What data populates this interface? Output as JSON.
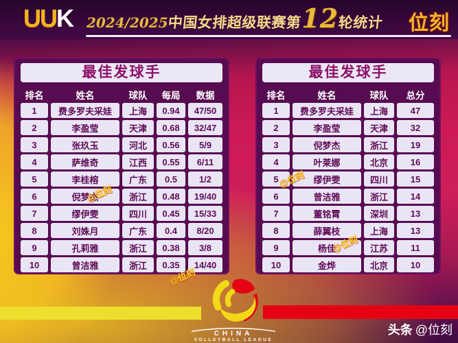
{
  "header": {
    "logo_uu": "UU",
    "logo_k": "K",
    "season": "2024/2025",
    "league": "中国女排超级联赛第",
    "round": "12",
    "round_suffix": "轮统计",
    "brand": "位刻"
  },
  "chart_data": [
    {
      "type": "table",
      "title": "最佳发球手",
      "columns": [
        "排名",
        "姓名",
        "球队",
        "每局",
        "数据"
      ],
      "rows": [
        [
          "1",
          "费多罗夫采娃",
          "上海",
          "0.94",
          "47/50"
        ],
        [
          "2",
          "李盈莹",
          "天津",
          "0.68",
          "32/47"
        ],
        [
          "3",
          "张玖玉",
          "河北",
          "0.56",
          "5/9"
        ],
        [
          "4",
          "萨维奇",
          "江西",
          "0.55",
          "6/11"
        ],
        [
          "5",
          "李桂榕",
          "广东",
          "0.5",
          "1/2"
        ],
        [
          "6",
          "倪梦杰",
          "浙江",
          "0.48",
          "19/40"
        ],
        [
          "7",
          "缪伊雯",
          "四川",
          "0.45",
          "15/33"
        ],
        [
          "8",
          "刘姝月",
          "广东",
          "0.4",
          "8/20"
        ],
        [
          "9",
          "孔莉雅",
          "浙江",
          "0.38",
          "3/8"
        ],
        [
          "10",
          "曾洁雅",
          "浙江",
          "0.35",
          "14/40"
        ]
      ]
    },
    {
      "type": "table",
      "title": "最佳发球手",
      "columns": [
        "排名",
        "姓名",
        "球队",
        "总分"
      ],
      "rows": [
        [
          "1",
          "费多罗夫采娃",
          "上海",
          "47"
        ],
        [
          "2",
          "李盈莹",
          "天津",
          "32"
        ],
        [
          "3",
          "倪梦杰",
          "浙江",
          "19"
        ],
        [
          "4",
          "叶莱娜",
          "北京",
          "16"
        ],
        [
          "5",
          "缪伊雯",
          "四川",
          "15"
        ],
        [
          "6",
          "曾洁雅",
          "浙江",
          "14"
        ],
        [
          "7",
          "董铭霄",
          "深圳",
          "13"
        ],
        [
          "8",
          "薛翼枝",
          "上海",
          "13"
        ],
        [
          "9",
          "杨佳",
          "江苏",
          "11"
        ],
        [
          "10",
          "金烨",
          "北京",
          "10"
        ]
      ]
    }
  ],
  "watermark": "@位刻",
  "footer": {
    "league_line1": "CHINA",
    "league_line2": "VOLLEYBALL LEAGUE",
    "credit_bold": "头条",
    "credit_handle": "@位刻"
  },
  "colors": {
    "banner_purple": "#37073a",
    "background_magenta": "#ce1d5a",
    "background_gold": "#f2c51d",
    "table_frame_purple": "#570b50",
    "cell_background": "#eae5f5",
    "cell_text_purple": "#5f0c56",
    "title_text_magenta": "#8c1168",
    "accent_gold": "#f3b52a",
    "logo_red": "#e60013",
    "logo_yellow": "#f0dc20"
  }
}
